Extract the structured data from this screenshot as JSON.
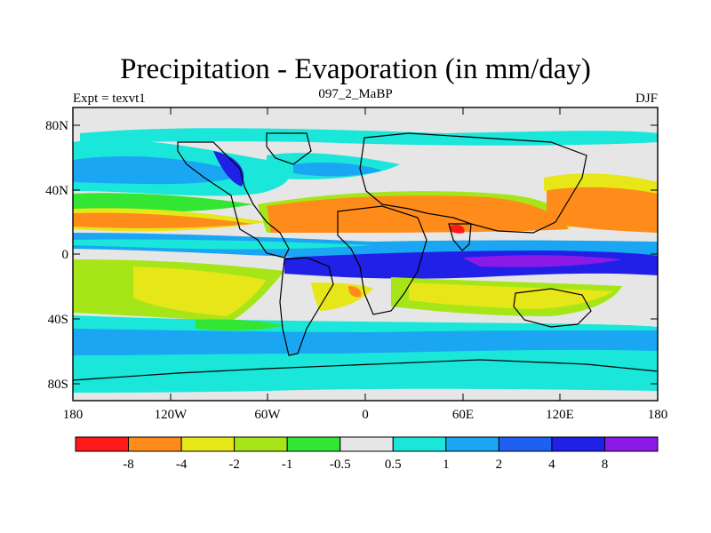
{
  "title": "Precipitation - Evaporation (in mm/day)",
  "subtitle": "097_2_MaBP",
  "left_string": "Expt = texvt1",
  "right_string": "DJF",
  "y_ticks": [
    "80N",
    "40N",
    "0",
    "40S",
    "80S"
  ],
  "x_ticks": [
    "180",
    "120W",
    "60W",
    "0",
    "60E",
    "120E",
    "180"
  ],
  "colorbar": {
    "colors": [
      "#ff1a1a",
      "#ff8c1a",
      "#e6e619",
      "#a6e619",
      "#33e633",
      "#e6e6e6",
      "#1ae6d9",
      "#1aa6f2",
      "#1f5ff2",
      "#2020e6",
      "#8c1ae6"
    ],
    "labels": [
      "-8",
      "-4",
      "-2",
      "-1",
      "-0.5",
      "0.5",
      "1",
      "2",
      "4",
      "8"
    ]
  },
  "field_colors": {
    "strong_dry": "#ff1a1a",
    "dry": "#ff8c1a",
    "moderate_dry": "#e6e619",
    "light_dry": "#a6e619",
    "slight_dry": "#33e633",
    "neutral": "#e6e6e6",
    "slight_wet": "#1ae6d9",
    "light_wet": "#1aa6f2",
    "moderate_wet": "#1f5ff2",
    "wet": "#2020e6",
    "strong_wet": "#8c1ae6"
  }
}
